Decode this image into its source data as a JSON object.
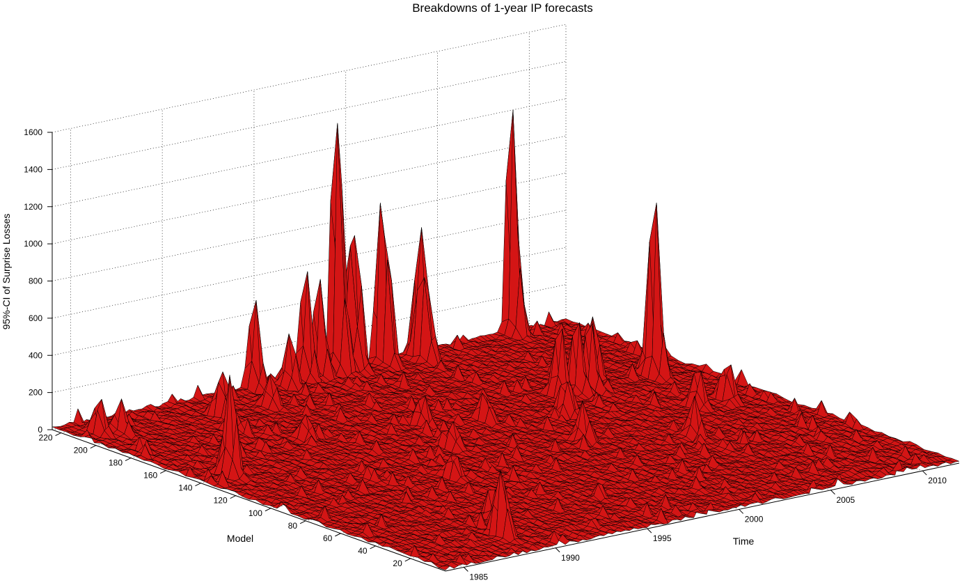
{
  "chart_data": {
    "type": "surface",
    "title": "Breakdowns of 1-year IP forecasts",
    "xlabel": "Time",
    "ylabel": "Model",
    "zlabel": "95%-CI of Surprise Losses",
    "xlim": [
      1984,
      2012
    ],
    "ylim": [
      0,
      225
    ],
    "zlim": [
      0,
      1600
    ],
    "x_ticks": [
      1985,
      1990,
      1995,
      2000,
      2005,
      2010
    ],
    "y_ticks": [
      20,
      40,
      60,
      80,
      100,
      120,
      140,
      160,
      180,
      200,
      220
    ],
    "z_ticks": [
      0,
      200,
      400,
      600,
      800,
      1000,
      1200,
      1400,
      1600
    ],
    "grid": true,
    "colors": {
      "surface": "#d41515",
      "edge": "#000000",
      "background": "#ffffff"
    },
    "peaks": [
      {
        "time": 2008.8,
        "model": 222,
        "value": 1450
      },
      {
        "time": 2001.6,
        "model": 220,
        "value": 1230
      },
      {
        "time": 1999.3,
        "model": 222,
        "value": 1100
      },
      {
        "time": 1999.2,
        "model": 222,
        "value": 800
      },
      {
        "time": 2000.1,
        "model": 220,
        "value": 700
      },
      {
        "time": 1999.8,
        "model": 222,
        "value": 650
      },
      {
        "time": 1997.5,
        "model": 222,
        "value": 620
      },
      {
        "time": 1998.3,
        "model": 222,
        "value": 580
      },
      {
        "time": 2003.4,
        "model": 218,
        "value": 600
      },
      {
        "time": 2003.2,
        "model": 214,
        "value": 520
      },
      {
        "time": 1985.6,
        "model": 140,
        "value": 560
      },
      {
        "time": 1994.7,
        "model": 222,
        "value": 520
      },
      {
        "time": 1996.1,
        "model": 216,
        "value": 300
      },
      {
        "time": 1989.0,
        "model": 20,
        "value": 500
      },
      {
        "time": 1993.5,
        "model": 200,
        "value": 200
      },
      {
        "time": 1990.9,
        "model": 200,
        "value": 330
      },
      {
        "time": 1990.0,
        "model": 185,
        "value": 150
      },
      {
        "time": 1991.6,
        "model": 160,
        "value": 180
      },
      {
        "time": 1987.7,
        "model": 160,
        "value": 130
      },
      {
        "time": 1985.1,
        "model": 210,
        "value": 200
      },
      {
        "time": 1985.9,
        "model": 205,
        "value": 190
      },
      {
        "time": 2004.5,
        "model": 150,
        "value": 420
      },
      {
        "time": 2005.5,
        "model": 150,
        "value": 420
      },
      {
        "time": 2006.2,
        "model": 150,
        "value": 400
      },
      {
        "time": 2007.3,
        "model": 160,
        "value": 350
      },
      {
        "time": 2009.7,
        "model": 150,
        "value": 1050
      },
      {
        "time": 2009.8,
        "model": 110,
        "value": 300
      },
      {
        "time": 2008.2,
        "model": 110,
        "value": 250
      },
      {
        "time": 2003.0,
        "model": 130,
        "value": 270
      },
      {
        "time": 1999.5,
        "model": 140,
        "value": 220
      },
      {
        "time": 2001.0,
        "model": 100,
        "value": 220
      },
      {
        "time": 2005.2,
        "model": 80,
        "value": 220
      },
      {
        "time": 1997.0,
        "model": 150,
        "value": 200
      },
      {
        "time": 1995.8,
        "model": 120,
        "value": 180
      },
      {
        "time": 1993.0,
        "model": 90,
        "value": 180
      },
      {
        "time": 1990.5,
        "model": 40,
        "value": 160
      }
    ]
  }
}
